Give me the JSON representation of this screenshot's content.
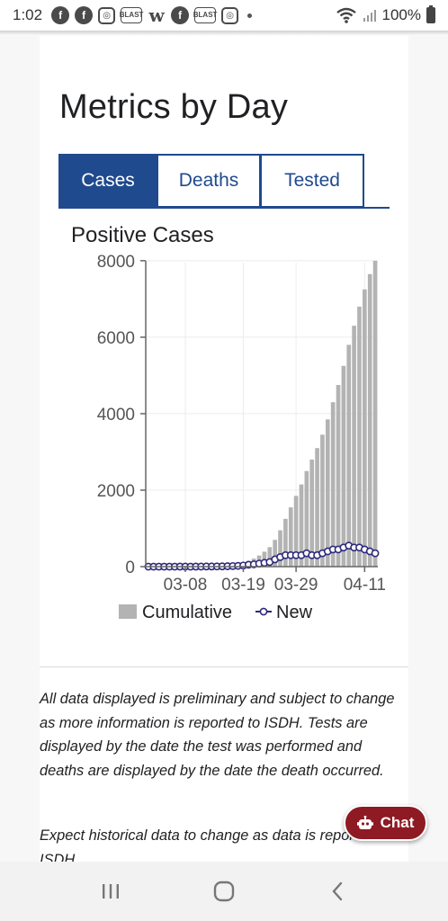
{
  "status_bar": {
    "time": "1:02",
    "notification_icons": [
      "facebook-icon",
      "facebook-icon",
      "instagram-icon",
      "blast-icon",
      "w-icon",
      "facebook-icon",
      "blast-icon",
      "instagram-icon"
    ],
    "blast_label": "BLAST",
    "battery": "100%"
  },
  "page": {
    "title": "Metrics by Day",
    "tabs": [
      {
        "label": "Cases",
        "active": true
      },
      {
        "label": "Deaths",
        "active": false
      },
      {
        "label": "Tested",
        "active": false
      }
    ],
    "chart_title": "Positive Cases",
    "legend": {
      "cumulative": "Cumulative",
      "new": "New"
    },
    "notes": [
      "All data displayed is preliminary and subject to change as more information is reported to ISDH. Tests are displayed by the date the test was performed and deaths are displayed by the date the death occurred.",
      "Expect historical data to change as data is reported to ISDH."
    ]
  },
  "chat": {
    "label": "Chat"
  },
  "colors": {
    "tab_blue": "#1f4a8e",
    "bar_gray": "#b3b3b3",
    "line_navy": "#2e2a7a",
    "chat_red": "#8e1a24"
  },
  "chart_data": {
    "type": "bar",
    "title": "Positive Cases",
    "xlabel": "",
    "ylabel": "",
    "x_ticks": [
      "03-08",
      "03-19",
      "03-29",
      "04-11"
    ],
    "y_ticks": [
      "0",
      "2000",
      "4000",
      "6000",
      "8000"
    ],
    "ylim": [
      0,
      8000
    ],
    "x": [
      "03-01",
      "03-02",
      "03-03",
      "03-04",
      "03-05",
      "03-06",
      "03-07",
      "03-08",
      "03-09",
      "03-10",
      "03-11",
      "03-12",
      "03-13",
      "03-14",
      "03-15",
      "03-16",
      "03-17",
      "03-18",
      "03-19",
      "03-20",
      "03-21",
      "03-22",
      "03-23",
      "03-24",
      "03-25",
      "03-26",
      "03-27",
      "03-28",
      "03-29",
      "03-30",
      "03-31",
      "04-01",
      "04-02",
      "04-03",
      "04-04",
      "04-05",
      "04-06",
      "04-07",
      "04-08",
      "04-09",
      "04-10",
      "04-11",
      "04-12",
      "04-13"
    ],
    "series": [
      {
        "name": "Cumulative",
        "type": "bar",
        "values": [
          0,
          0,
          0,
          0,
          0,
          0,
          1,
          2,
          2,
          3,
          5,
          9,
          13,
          18,
          25,
          35,
          50,
          70,
          100,
          150,
          210,
          290,
          390,
          510,
          700,
          950,
          1250,
          1550,
          1850,
          2150,
          2500,
          2800,
          3100,
          3450,
          3850,
          4300,
          4750,
          5250,
          5800,
          6300,
          6800,
          7250,
          7650,
          8000
        ]
      },
      {
        "name": "New",
        "type": "line",
        "values": [
          0,
          0,
          0,
          0,
          0,
          0,
          1,
          1,
          0,
          1,
          2,
          4,
          4,
          5,
          7,
          10,
          15,
          20,
          30,
          50,
          60,
          80,
          100,
          120,
          190,
          250,
          300,
          300,
          300,
          300,
          350,
          300,
          300,
          350,
          400,
          450,
          450,
          500,
          550,
          500,
          500,
          450,
          400,
          350
        ]
      }
    ],
    "legend_position": "bottom",
    "grid": true
  }
}
